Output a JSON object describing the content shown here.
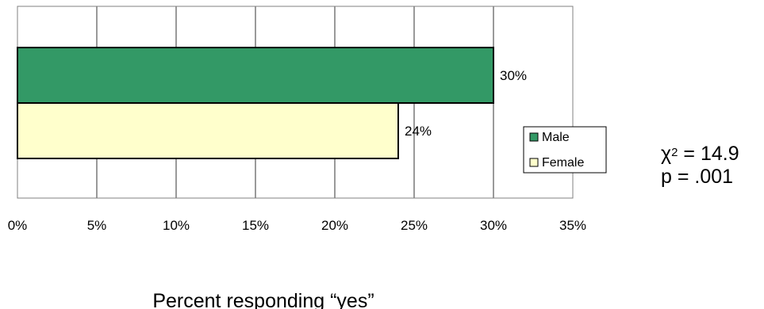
{
  "chart_data": {
    "type": "bar",
    "orientation": "horizontal",
    "categories": [
      ""
    ],
    "series": [
      {
        "name": "Male",
        "values": [
          30
        ],
        "color": "#339966",
        "label": "30%"
      },
      {
        "name": "Female",
        "values": [
          24
        ],
        "color": "#ffffcc",
        "label": "24%"
      }
    ],
    "xlabel": "Percent responding “yes”",
    "xlim": [
      0,
      35
    ],
    "xticks": [
      "0%",
      "5%",
      "10%",
      "15%",
      "20%",
      "25%",
      "30%",
      "35%"
    ],
    "grid": true,
    "legend_position": "right"
  },
  "annotation": {
    "chi_symbol": "χ",
    "chi_exponent": "2",
    "chi_value": " = 14.9",
    "p_value": "p = .001"
  }
}
